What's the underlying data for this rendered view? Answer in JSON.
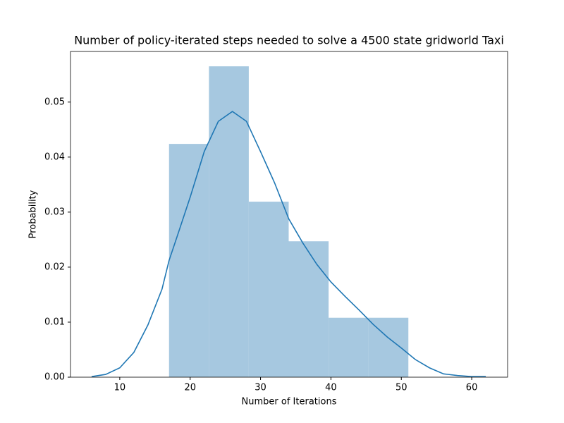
{
  "chart_data": {
    "type": "histogram",
    "title": "Number of policy-iterated steps needed to solve a 4500 state gridworld Taxi",
    "xlabel": "Number of Iterations",
    "ylabel": "Probability",
    "bins": [
      17.0,
      22.67,
      28.33,
      34.0,
      39.67,
      45.33,
      51.0
    ],
    "values": [
      0.0424,
      0.0565,
      0.0319,
      0.0247,
      0.0108,
      0.0108
    ],
    "color": "#a6c8e0",
    "kde": {
      "color": "#1f77b4",
      "x": [
        6,
        8,
        10,
        12,
        14,
        16,
        17,
        18,
        20,
        22,
        24,
        26,
        28,
        30,
        32,
        34,
        36,
        38,
        40,
        42,
        44,
        46,
        48,
        50,
        52,
        54,
        56,
        58,
        60,
        62
      ],
      "values": [
        0.0001,
        0.0005,
        0.0017,
        0.0045,
        0.0095,
        0.016,
        0.0212,
        0.025,
        0.0327,
        0.041,
        0.0465,
        0.0483,
        0.0465,
        0.041,
        0.0353,
        0.0288,
        0.0244,
        0.0205,
        0.0173,
        0.0147,
        0.0122,
        0.0096,
        0.0073,
        0.0053,
        0.0032,
        0.0017,
        0.0006,
        0.0003,
        0.0001,
        0.0001
      ]
    },
    "xlim": [
      3.0,
      65.1
    ],
    "ylim": [
      0,
      0.0592
    ],
    "xticks": [
      10,
      20,
      30,
      40,
      50,
      60
    ],
    "yticks": [
      {
        "value": 0,
        "label": "0.00"
      },
      0.01,
      0.02,
      0.03,
      0.04,
      0.05
    ]
  }
}
